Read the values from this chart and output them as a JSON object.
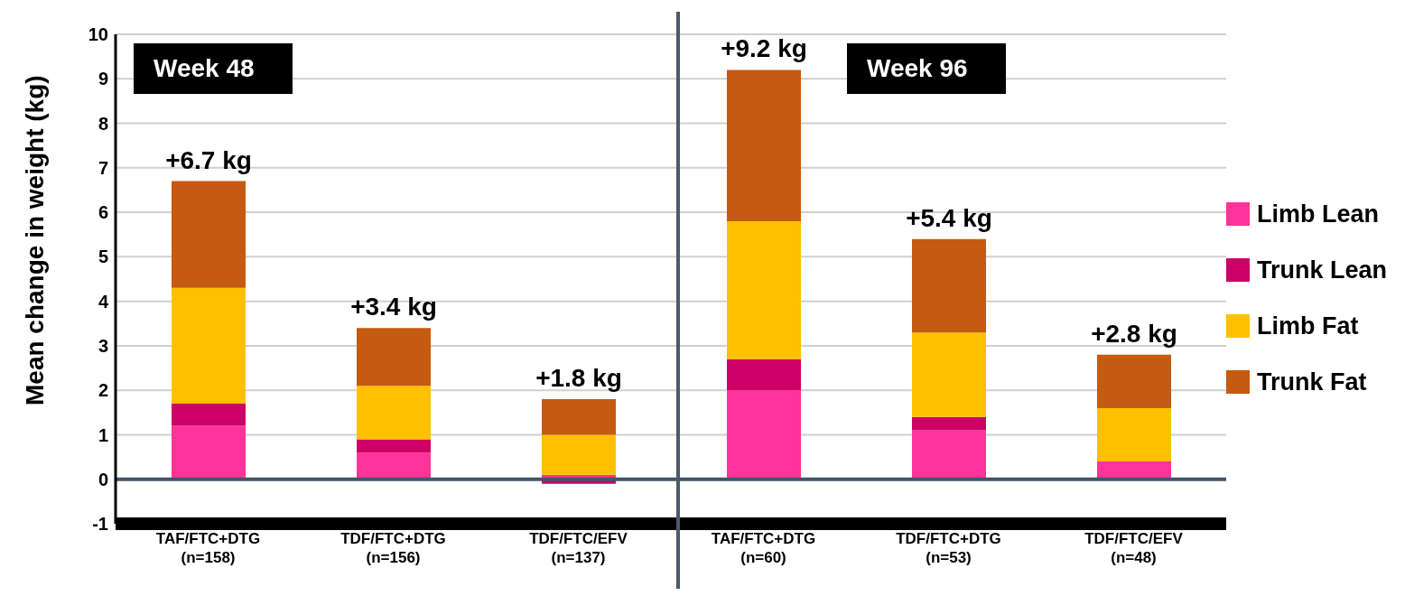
{
  "chart_data": {
    "type": "bar",
    "stacked": true,
    "ylabel": "Mean change in weight (kg)",
    "categories": [
      "TAF/FTC+DTG\n(n=158)",
      "TDF/FTC+DTG\n(n=156)",
      "TDF/FTC/EFV\n(n=137)",
      "TAF/FTC+DTG\n(n=60)",
      "TDF/FTC+DTG\n(n=53)",
      "TDF/FTC/EFV\n(n=48)"
    ],
    "series": [
      {
        "name": "Limb Lean",
        "color": "#ff3399",
        "values": [
          1.2,
          0.6,
          0.1,
          2.0,
          1.1,
          0.4
        ]
      },
      {
        "name": "Trunk Lean",
        "color": "#cc0066",
        "values": [
          0.5,
          0.3,
          -0.1,
          0.7,
          0.3,
          0
        ]
      },
      {
        "name": "Limb Fat",
        "color": "#ffc000",
        "values": [
          2.6,
          1.2,
          0.9,
          3.1,
          1.9,
          1.2
        ]
      },
      {
        "name": "Trunk Fat",
        "color": "#c55a11",
        "values": [
          2.4,
          1.3,
          0.8,
          3.4,
          2.1,
          1.2
        ]
      }
    ],
    "totals": [
      "+6.7 kg",
      "+3.4 kg",
      "+1.8 kg",
      "+9.2 kg",
      "+5.4 kg",
      "+2.8 kg"
    ],
    "annotations": [
      "Week 48",
      "Week 96"
    ],
    "ylim": [
      -1,
      10
    ],
    "yticks": [
      -1,
      0,
      1,
      2,
      3,
      4,
      5,
      6,
      7,
      8,
      9,
      10
    ],
    "ref_lines": [
      {
        "axis": "y",
        "value": 0,
        "color": "#44546a"
      }
    ],
    "grid": "y",
    "legend": "right"
  }
}
